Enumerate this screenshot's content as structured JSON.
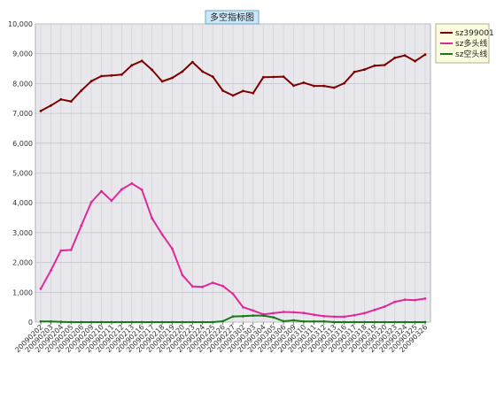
{
  "chart_data": {
    "type": "line",
    "title": "多空指标图",
    "xlabel": "",
    "ylabel": "",
    "ylim": [
      0,
      10000
    ],
    "y_ticks": [
      "0",
      "1,000",
      "2,000",
      "3,000",
      "4,000",
      "5,000",
      "6,000",
      "7,000",
      "8,000",
      "9,000",
      "10,000"
    ],
    "y_tick_values": [
      0,
      1000,
      2000,
      3000,
      4000,
      5000,
      6000,
      7000,
      8000,
      9000,
      10000
    ],
    "grid": true,
    "legend_position": "top-right",
    "categories": [
      "20090202",
      "20090203",
      "20090204",
      "20090205",
      "20090206",
      "20090209",
      "20090210",
      "20090211",
      "20090212",
      "20090213",
      "20090216",
      "20090217",
      "20090218",
      "20090219",
      "20090220",
      "20090223",
      "20090224",
      "20090225",
      "20090226",
      "20090227",
      "20090302",
      "20090303",
      "20090304",
      "20090305",
      "20090306",
      "20090309",
      "20090310",
      "20090311",
      "20090312",
      "20090313",
      "20090316",
      "20090317",
      "20090318",
      "20090319",
      "20090320",
      "20090323",
      "20090324",
      "20090325",
      "20090326"
    ],
    "series": [
      {
        "name": "sz399001",
        "color": "#800000",
        "values": [
          7080,
          7260,
          7470,
          7400,
          7760,
          8080,
          8250,
          8270,
          8300,
          8610,
          8760,
          8460,
          8070,
          8190,
          8400,
          8720,
          8400,
          8230,
          7760,
          7600,
          7750,
          7680,
          8210,
          8220,
          8230,
          7930,
          8030,
          7920,
          7920,
          7860,
          8010,
          8390,
          8470,
          8600,
          8620,
          8860,
          8940,
          8750,
          8970
        ]
      },
      {
        "name": "sz多头线",
        "color": "#e0289a",
        "values": [
          1120,
          1730,
          2400,
          2420,
          3230,
          4020,
          4390,
          4070,
          4450,
          4650,
          4440,
          3480,
          2940,
          2460,
          1580,
          1200,
          1180,
          1320,
          1210,
          950,
          500,
          390,
          260,
          300,
          340,
          330,
          310,
          250,
          200,
          180,
          180,
          230,
          300,
          410,
          520,
          680,
          750,
          740,
          790
        ]
      },
      {
        "name": "sz空头线",
        "color": "#1a7a1a",
        "values": [
          20,
          20,
          10,
          0,
          0,
          0,
          0,
          0,
          0,
          0,
          0,
          0,
          0,
          0,
          0,
          0,
          0,
          0,
          30,
          190,
          200,
          220,
          220,
          160,
          30,
          60,
          20,
          20,
          20,
          0,
          0,
          0,
          0,
          0,
          0,
          0,
          0,
          0,
          0
        ]
      }
    ]
  }
}
